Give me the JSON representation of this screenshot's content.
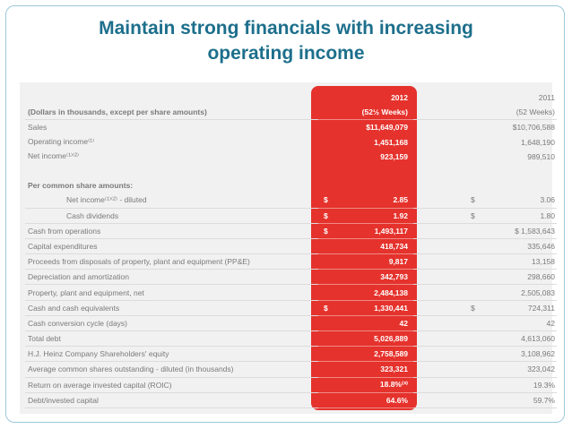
{
  "slide": {
    "title_line1": "Maintain strong financials with increasing",
    "title_line2": "operating income"
  },
  "table": {
    "year_2012": "2012",
    "year_2011": "2011",
    "units_label": "(Dollars in thousands, except per share amounts)",
    "weeks_2012": "(52½ Weeks)",
    "weeks_2011": "(52 Weeks)",
    "section_label": "Per common share amounts:",
    "rows_top": [
      {
        "label": "Sales",
        "v2012": "$11,649,079",
        "v2011": "$10,706,588"
      },
      {
        "label": "Operating income⁽¹⁾",
        "v2012": "1,451,168",
        "v2011": "1,648,190"
      },
      {
        "label": "Net income⁽¹⁾⁽²⁾",
        "v2012": "923,159",
        "v2011": "989,510"
      }
    ],
    "rows_pershare": [
      {
        "label": "Net income⁽¹⁾⁽²⁾ - diluted",
        "sym2012": "$",
        "v2012": "2.85",
        "sym2011": "$",
        "v2011": "3.06"
      },
      {
        "label": "Cash dividends",
        "sym2012": "$",
        "v2012": "1.92",
        "sym2011": "$",
        "v2011": "1.80"
      }
    ],
    "rows_main": [
      {
        "label": "Cash from operations",
        "sym2012": "$",
        "v2012": "1,493,117",
        "sym2011": "",
        "v2011": "$ 1,583,643"
      },
      {
        "label": "Capital expenditures",
        "sym2012": "",
        "v2012": "418,734",
        "sym2011": "",
        "v2011": "335,646"
      },
      {
        "label": "Proceeds from disposals of property, plant and equipment (PP&E)",
        "sym2012": "",
        "v2012": "9,817",
        "sym2011": "",
        "v2011": "13,158"
      },
      {
        "label": "Depreciation and amortization",
        "sym2012": "",
        "v2012": "342,793",
        "sym2011": "",
        "v2011": "298,660"
      },
      {
        "label": "Property, plant and equipment, net",
        "sym2012": "",
        "v2012": "2,484,138",
        "sym2011": "",
        "v2011": "2,505,083"
      },
      {
        "label": "Cash and cash equivalents",
        "sym2012": "$",
        "v2012": "1,330,441",
        "sym2011": "$",
        "v2011": "724,311"
      },
      {
        "label": "Cash conversion cycle (days)",
        "sym2012": "",
        "v2012": "42",
        "sym2011": "",
        "v2011": "42"
      },
      {
        "label": "Total debt",
        "sym2012": "",
        "v2012": "5,026,889",
        "sym2011": "",
        "v2011": "4,613,060"
      },
      {
        "label": "H.J. Heinz Company Shareholders' equity",
        "sym2012": "",
        "v2012": "2,758,589",
        "sym2011": "",
        "v2011": "3,108,962"
      },
      {
        "label": "Average common shares outstanding - diluted (in thousands)",
        "sym2012": "",
        "v2012": "323,321",
        "sym2011": "",
        "v2011": "323,042"
      },
      {
        "label": "Return on average invested capital (ROIC)",
        "sym2012": "",
        "v2012": "18.8%⁽³⁾",
        "sym2011": "",
        "v2011": "19.3%"
      },
      {
        "label": "Debt/invested capital",
        "sym2012": "",
        "v2012": "64.6%",
        "sym2011": "",
        "v2011": "59.7%"
      }
    ]
  }
}
